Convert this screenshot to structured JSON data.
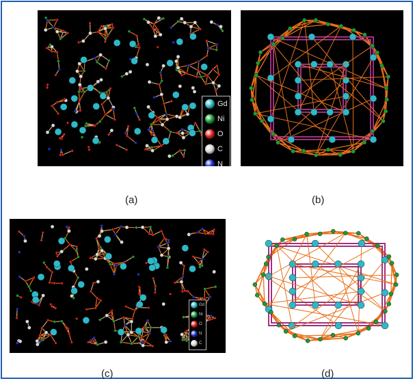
{
  "figure": {
    "captions": {
      "a": "(a)",
      "b": "(b)",
      "c": "(c)",
      "d": "(d)"
    },
    "legend_a": [
      {
        "label": "Gd",
        "color": "#2fb8c8"
      },
      {
        "label": "Ni",
        "color": "#1c9a3c"
      },
      {
        "label": "O",
        "color": "#e02020"
      },
      {
        "label": "C",
        "color": "#d8d8d8"
      },
      {
        "label": "N",
        "color": "#2030c0"
      }
    ],
    "legend_c": [
      {
        "label": "Gd",
        "color": "#2fb8c8"
      },
      {
        "label": "Ni",
        "color": "#1c9a3c"
      },
      {
        "label": "O",
        "color": "#e02020"
      },
      {
        "label": "N",
        "color": "#2030c0"
      },
      {
        "label": "C",
        "color": "#d8d8d8"
      }
    ],
    "colors": {
      "frame": "#1f5fb0",
      "bond_orange": "#e8701a",
      "bond_purple": "#a0307f",
      "gd": "#2fb8c8",
      "ni": "#1c9a3c",
      "o": "#e02020",
      "c": "#d8d8d8",
      "n": "#2030c0",
      "panel_bg": "#000000"
    }
  }
}
